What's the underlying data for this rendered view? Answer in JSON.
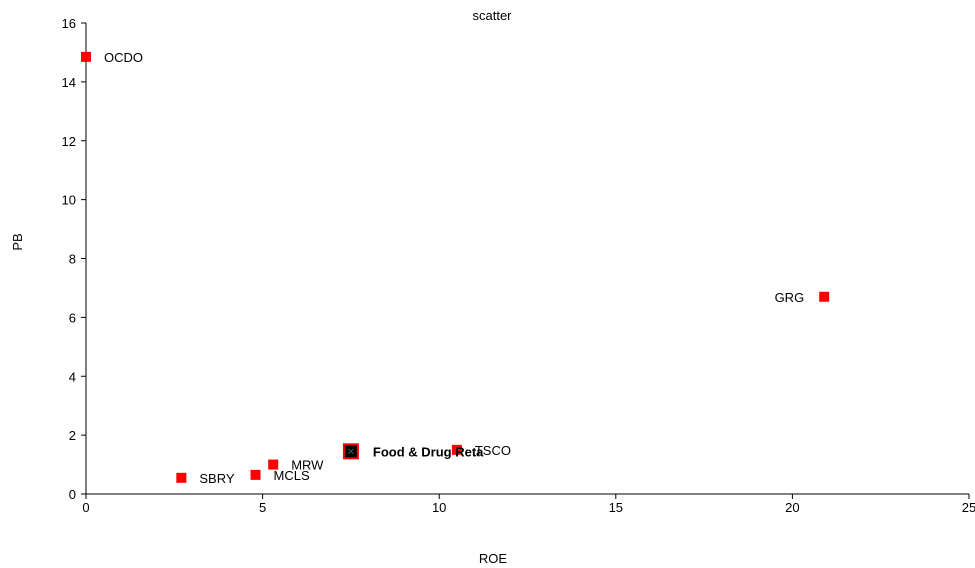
{
  "chart_data": {
    "type": "scatter",
    "title": "scatter",
    "xlabel": "ROE",
    "ylabel": "PB",
    "xlim": [
      0,
      25
    ],
    "ylim": [
      0,
      16
    ],
    "xticks": [
      0,
      5,
      10,
      15,
      20,
      25
    ],
    "yticks": [
      0,
      2,
      4,
      6,
      8,
      10,
      12,
      14,
      16
    ],
    "grid": false,
    "legend": "none",
    "marker_color": "#ff0000",
    "highlight_color": "#000000",
    "points": [
      {
        "label": "OCDO",
        "x": 0.0,
        "y": 14.85,
        "label_side": "right"
      },
      {
        "label": "GRG",
        "x": 20.9,
        "y": 6.7,
        "label_side": "left"
      },
      {
        "label": "TSCO",
        "x": 10.5,
        "y": 1.5,
        "label_side": "right"
      },
      {
        "label": "MRW",
        "x": 5.3,
        "y": 1.0,
        "label_side": "right"
      },
      {
        "label": "MCLS",
        "x": 4.8,
        "y": 0.65,
        "label_side": "right"
      },
      {
        "label": "SBRY",
        "x": 2.7,
        "y": 0.55,
        "label_side": "right"
      },
      {
        "label": "Food & Drug Reta",
        "x": 7.5,
        "y": 1.45,
        "label_side": "right",
        "highlight": true
      }
    ]
  }
}
